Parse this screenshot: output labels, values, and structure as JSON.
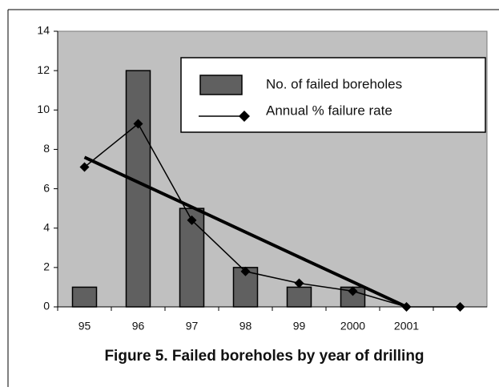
{
  "chart_data": {
    "type": "bar-line",
    "title": "Figure 5. Failed boreholes by year of drilling",
    "categories": [
      "95",
      "96",
      "97",
      "98",
      "99",
      "2000",
      "2001",
      null
    ],
    "series": [
      {
        "name": "No. of failed boreholes",
        "type": "bar",
        "color": "#606060",
        "values": [
          1,
          12,
          5,
          2,
          1,
          1,
          0,
          0
        ]
      },
      {
        "name": "Annual % failure rate",
        "type": "line",
        "color": "#000000",
        "values": [
          7.1,
          9.3,
          4.4,
          1.8,
          1.2,
          0.8,
          0,
          0
        ]
      }
    ],
    "trendline": {
      "color": "#000000",
      "values": [
        7.6,
        6.33,
        5.07,
        3.8,
        2.53,
        1.27,
        0
      ]
    },
    "ylim": [
      0,
      14
    ],
    "yticks": [
      0,
      2,
      4,
      6,
      8,
      10,
      12,
      14
    ],
    "plot_background": "#c0c0c0"
  }
}
